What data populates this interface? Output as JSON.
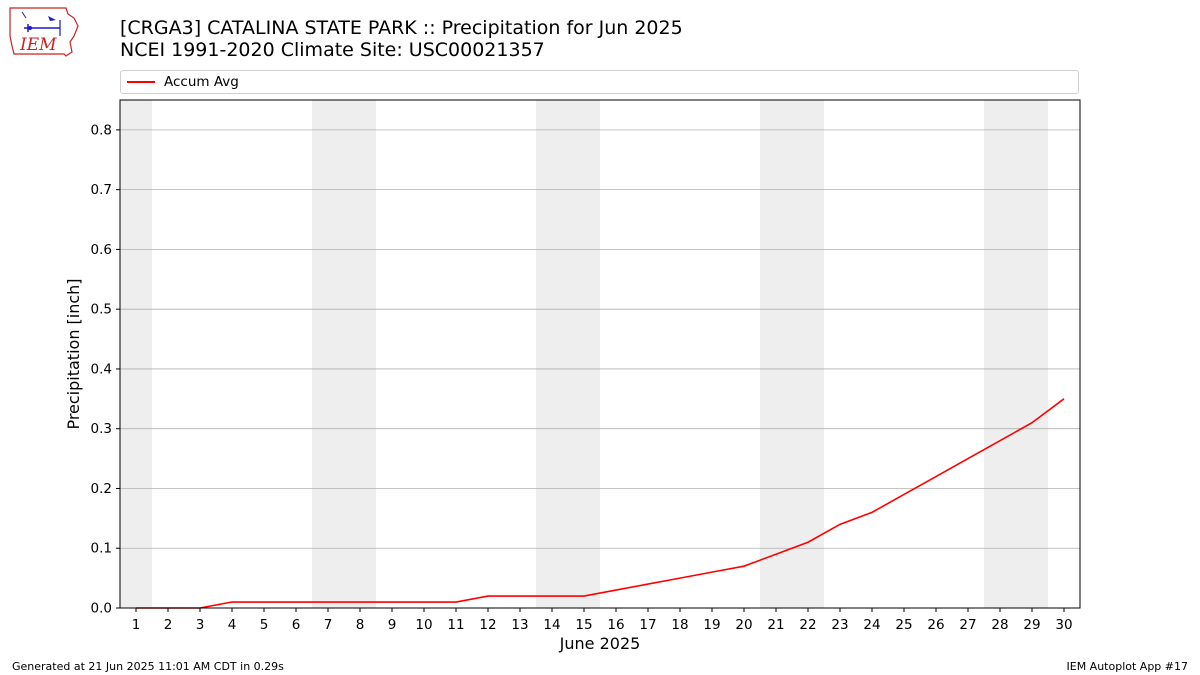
{
  "header": {
    "title_line1": "[CRGA3] CATALINA STATE PARK :: Precipitation for Jun 2025",
    "title_line2": "NCEI 1991-2020 Climate Site: USC00021357",
    "logo_text": "IEM"
  },
  "footer": {
    "left": "Generated at 21 Jun 2025 11:01 AM CDT in 0.29s",
    "right": "IEM Autoplot App #17"
  },
  "colors": {
    "series": "#ff0000",
    "weekend_band": "#eeeeee",
    "grid": "#b0b0b0",
    "logo_red": "#cc2222",
    "logo_blue": "#1a1acc"
  },
  "chart_data": {
    "type": "line",
    "xlabel": "June 2025",
    "ylabel": "Precipitation [inch]",
    "x": [
      1,
      2,
      3,
      4,
      5,
      6,
      7,
      8,
      9,
      10,
      11,
      12,
      13,
      14,
      15,
      16,
      17,
      18,
      19,
      20,
      21,
      22,
      23,
      24,
      25,
      26,
      27,
      28,
      29,
      30
    ],
    "xlim": [
      0.5,
      30.5
    ],
    "ylim": [
      0,
      0.85
    ],
    "yticks": [
      0.0,
      0.1,
      0.2,
      0.3,
      0.4,
      0.5,
      0.6,
      0.7,
      0.8
    ],
    "ytick_labels": [
      "0.0",
      "0.1",
      "0.2",
      "0.3",
      "0.4",
      "0.5",
      "0.6",
      "0.7",
      "0.8"
    ],
    "xtick_labels": [
      "1",
      "2",
      "3",
      "4",
      "5",
      "6",
      "7",
      "8",
      "9",
      "10",
      "11",
      "12",
      "13",
      "14",
      "15",
      "16",
      "17",
      "18",
      "19",
      "20",
      "21",
      "22",
      "23",
      "24",
      "25",
      "26",
      "27",
      "28",
      "29",
      "30"
    ],
    "grid": "y",
    "legend": "top",
    "weekend_bands": [
      [
        0.5,
        1.5
      ],
      [
        6.5,
        8.5
      ],
      [
        13.5,
        15.5
      ],
      [
        20.5,
        22.5
      ],
      [
        27.5,
        29.5
      ]
    ],
    "series": [
      {
        "name": "Accum Avg",
        "values": [
          0.0,
          0.0,
          0.0,
          0.01,
          0.01,
          0.01,
          0.01,
          0.01,
          0.01,
          0.01,
          0.01,
          0.02,
          0.02,
          0.02,
          0.02,
          0.03,
          0.04,
          0.05,
          0.06,
          0.07,
          0.09,
          0.11,
          0.14,
          0.16,
          0.19,
          0.22,
          0.25,
          0.28,
          0.31,
          0.35
        ]
      }
    ]
  }
}
